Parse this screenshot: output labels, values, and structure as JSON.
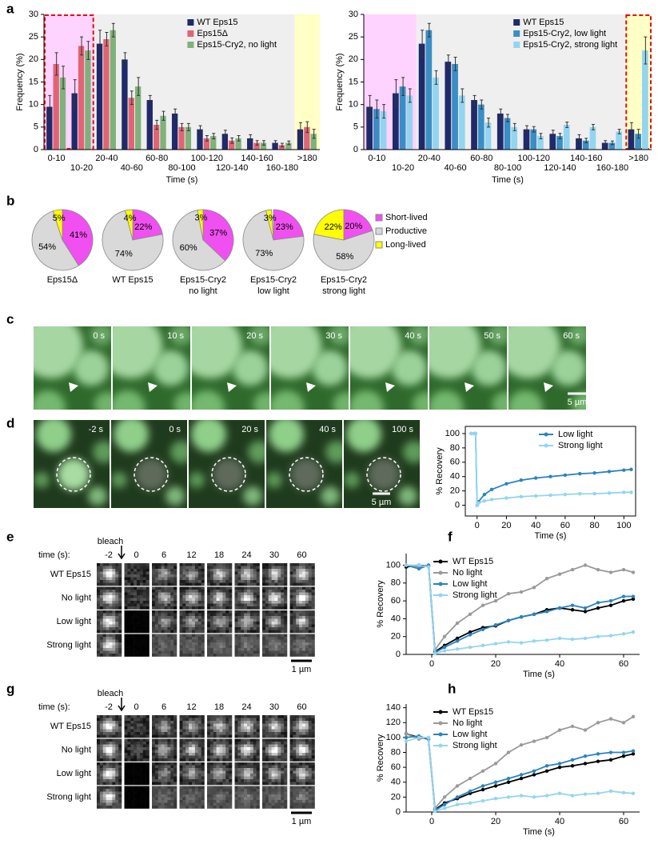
{
  "panel_labels": [
    "a",
    "b",
    "c",
    "d",
    "e",
    "f",
    "g",
    "h"
  ],
  "chart_data": [
    {
      "type": "bar",
      "xlabel": "Time (s)",
      "ylabel": "Frequency (%)",
      "outlined": "left",
      "legend": "upper right",
      "categories": [
        "0-10",
        "10-20",
        "20-40",
        "40-60",
        "60-80",
        "80-100",
        "100-120",
        "120-140",
        "140-160",
        "160-180",
        ">180"
      ],
      "ylim": [
        0,
        30
      ],
      "yticks": [
        0,
        5,
        10,
        15,
        20,
        25,
        30
      ],
      "series": [
        {
          "name": "WT Eps15",
          "color": "#1f2a6b",
          "values": [
            9.5,
            12.5,
            23.5,
            20,
            11,
            8,
            4.5,
            3.5,
            2.5,
            1.5,
            4.5
          ],
          "errors": [
            2.5,
            3,
            3,
            1.5,
            1,
            1,
            0.8,
            0.8,
            0.8,
            0.5,
            1.5
          ]
        },
        {
          "name": "Eps15Δ",
          "color": "#e06574",
          "values": [
            19,
            23,
            24.5,
            11.5,
            5.5,
            5,
            2.5,
            2,
            1.5,
            1,
            5
          ],
          "errors": [
            2.5,
            2,
            1.5,
            1.5,
            1,
            0.8,
            0.6,
            0.6,
            0.5,
            0.4,
            1.2
          ]
        },
        {
          "name": "Eps15-Cry2, no light",
          "color": "#7fb27a",
          "values": [
            16,
            22,
            26.5,
            14,
            7.5,
            5,
            3,
            2.5,
            1.5,
            1.5,
            3.5
          ],
          "errors": [
            2.5,
            2,
            1.5,
            2,
            1,
            0.8,
            0.6,
            0.6,
            0.5,
            0.4,
            1
          ]
        }
      ]
    },
    {
      "type": "bar",
      "xlabel": "Time (s)",
      "ylabel": "Frequency (%)",
      "outlined": "right",
      "legend": "upper right",
      "categories": [
        "0-10",
        "10-20",
        "20-40",
        "40-60",
        "60-80",
        "80-100",
        "100-120",
        "120-140",
        "140-160",
        "160-180",
        ">180"
      ],
      "ylim": [
        0,
        30
      ],
      "yticks": [
        0,
        5,
        10,
        15,
        20,
        25,
        30
      ],
      "series": [
        {
          "name": "WT Eps15",
          "color": "#1f2a6b",
          "values": [
            9.5,
            12.5,
            23.5,
            19.5,
            11,
            8,
            4.5,
            3.5,
            2.5,
            1.5,
            4.5
          ],
          "errors": [
            2.5,
            3,
            3,
            1.5,
            1,
            1,
            0.8,
            0.8,
            0.8,
            0.5,
            1.5
          ]
        },
        {
          "name": "Eps15-Cry2, low light",
          "color": "#3a8ec4",
          "values": [
            9,
            14,
            26.5,
            19,
            10,
            7,
            4.5,
            3,
            2,
            1.5,
            3.5
          ],
          "errors": [
            2,
            2,
            1.5,
            1.5,
            1,
            0.8,
            0.6,
            0.6,
            0.5,
            0.4,
            1
          ]
        },
        {
          "name": "Eps15-Cry2, strong light",
          "color": "#93d5f0",
          "values": [
            8.5,
            12,
            16,
            12,
            6,
            5,
            3,
            5.5,
            5,
            4,
            22
          ],
          "errors": [
            1.5,
            1.5,
            1.5,
            1.5,
            1,
            0.8,
            0.6,
            0.6,
            0.6,
            0.5,
            3
          ]
        }
      ]
    },
    {
      "type": "pie",
      "categories": [
        "Short-lived",
        "Productive",
        "Long-lived"
      ],
      "colors": [
        "#f050f0",
        "#d9d9d9",
        "#ffff00"
      ],
      "pies": [
        {
          "label": [
            "Eps15Δ"
          ],
          "values": [
            41,
            54,
            5
          ],
          "value_labels": [
            "41%",
            "54%",
            "5%"
          ]
        },
        {
          "label": [
            "WT Eps15"
          ],
          "values": [
            22,
            74,
            4
          ],
          "value_labels": [
            "22%",
            "74%",
            "4%"
          ]
        },
        {
          "label": [
            "Eps15-Cry2",
            "no light"
          ],
          "values": [
            37,
            60,
            3
          ],
          "value_labels": [
            "37%",
            "60%",
            "3%"
          ]
        },
        {
          "label": [
            "Eps15-Cry2",
            "low light"
          ],
          "values": [
            23,
            73,
            3
          ],
          "value_labels": [
            "23%",
            "73%",
            "3%"
          ]
        },
        {
          "label": [
            "Eps15-Cry2",
            "strong light"
          ],
          "values": [
            20,
            58,
            22
          ],
          "value_labels": [
            "20%",
            "58%",
            "22%"
          ]
        }
      ]
    },
    {
      "type": "line",
      "xlabel": "Time (s)",
      "ylabel": "% Recovery",
      "frame": true,
      "legend": "upper right",
      "x": [
        -4,
        -2,
        -1,
        0,
        1,
        5,
        10,
        20,
        30,
        40,
        50,
        60,
        70,
        80,
        90,
        100,
        105
      ],
      "xlim": [
        -8,
        108
      ],
      "xticks": [
        0,
        20,
        40,
        60,
        80,
        100
      ],
      "ylim": [
        -15,
        110
      ],
      "yticks": [
        0,
        20,
        40,
        60,
        80,
        100
      ],
      "series": [
        {
          "name": "Low light",
          "color": "#2a84bd",
          "values": [
            100,
            100,
            100,
            0,
            5,
            15,
            22,
            30,
            35,
            38,
            40,
            42,
            44,
            45,
            47,
            49,
            50
          ]
        },
        {
          "name": "Strong light",
          "color": "#93d5f0",
          "values": [
            100,
            100,
            100,
            0,
            3,
            6,
            8,
            10,
            12,
            13,
            14,
            15,
            16,
            16,
            17,
            18,
            18
          ]
        }
      ]
    },
    {
      "type": "line",
      "xlabel": "Time (s)",
      "ylabel": "% Recovery",
      "legend": "upper left",
      "x": [
        -8,
        -4,
        -1,
        1,
        4,
        8,
        12,
        16,
        20,
        24,
        28,
        32,
        36,
        40,
        44,
        48,
        52,
        56,
        60,
        63
      ],
      "xlim": [
        -8,
        65
      ],
      "xticks": [
        0,
        20,
        40,
        60
      ],
      "ylim": [
        0,
        113
      ],
      "yticks": [
        0,
        20,
        40,
        60,
        80,
        100
      ],
      "series": [
        {
          "name": "WT Eps15",
          "color": "#000000",
          "values": [
            98,
            100,
            99,
            3,
            10,
            18,
            25,
            30,
            32,
            38,
            42,
            45,
            50,
            52,
            50,
            48,
            52,
            55,
            60,
            62
          ]
        },
        {
          "name": "No light",
          "color": "#9a9a9a",
          "values": [
            100,
            98,
            100,
            5,
            20,
            35,
            45,
            55,
            60,
            68,
            70,
            75,
            85,
            90,
            95,
            100,
            95,
            92,
            95,
            92
          ]
        },
        {
          "name": "Low light",
          "color": "#2a84bd",
          "values": [
            100,
            96,
            100,
            2,
            8,
            15,
            22,
            28,
            33,
            38,
            42,
            45,
            48,
            52,
            55,
            52,
            58,
            60,
            65,
            65
          ]
        },
        {
          "name": "Strong light",
          "color": "#93d5f0",
          "values": [
            100,
            100,
            98,
            1,
            4,
            6,
            8,
            10,
            12,
            14,
            13,
            15,
            16,
            18,
            17,
            18,
            20,
            21,
            23,
            25
          ]
        }
      ]
    },
    {
      "type": "line",
      "xlabel": "Time (s)",
      "ylabel": "% Recovery",
      "legend": "upper left",
      "x": [
        -8,
        -4,
        -1,
        1,
        4,
        8,
        12,
        16,
        20,
        24,
        28,
        32,
        36,
        40,
        44,
        48,
        52,
        56,
        60,
        63
      ],
      "xlim": [
        -8,
        65
      ],
      "xticks": [
        0,
        20,
        40,
        60
      ],
      "ylim": [
        0,
        145
      ],
      "yticks": [
        0,
        20,
        40,
        60,
        80,
        100,
        120,
        140
      ],
      "series": [
        {
          "name": "WT Eps15",
          "color": "#000000",
          "values": [
            105,
            100,
            98,
            3,
            12,
            18,
            25,
            30,
            35,
            40,
            45,
            50,
            55,
            60,
            62,
            65,
            68,
            70,
            75,
            78
          ]
        },
        {
          "name": "No light",
          "color": "#9a9a9a",
          "values": [
            105,
            98,
            100,
            5,
            20,
            35,
            45,
            55,
            65,
            80,
            90,
            95,
            100,
            110,
            115,
            110,
            120,
            125,
            120,
            128
          ]
        },
        {
          "name": "Low light",
          "color": "#2a84bd",
          "values": [
            100,
            102,
            98,
            2,
            10,
            20,
            28,
            35,
            40,
            45,
            50,
            55,
            62,
            65,
            70,
            75,
            78,
            80,
            80,
            82
          ]
        },
        {
          "name": "Strong light",
          "color": "#93d5f0",
          "values": [
            95,
            100,
            100,
            1,
            5,
            10,
            12,
            15,
            18,
            20,
            22,
            20,
            22,
            25,
            22,
            24,
            25,
            28,
            26,
            25
          ]
        }
      ]
    }
  ],
  "panel_c": {
    "times": [
      "0 s",
      "10 s",
      "20 s",
      "30 s",
      "40 s",
      "50 s",
      "60 s"
    ],
    "scale": "5 µm"
  },
  "panel_d": {
    "times": [
      "-2 s",
      "0 s",
      "20 s",
      "40 s",
      "100 s"
    ],
    "scale": "5 µm"
  },
  "panel_e": {
    "header": "time (s):",
    "bleach": "bleach",
    "times": [
      "-2",
      "0",
      "6",
      "12",
      "18",
      "24",
      "30",
      "60"
    ],
    "rows": [
      "WT Eps15",
      "No light",
      "Low light",
      "Strong light"
    ],
    "scale": "1 µm"
  },
  "panel_g": {
    "header": "time (s):",
    "bleach": "bleach",
    "times": [
      "-2",
      "0",
      "6",
      "12",
      "18",
      "24",
      "30",
      "60"
    ],
    "rows": [
      "WT Eps15",
      "No light",
      "Low light",
      "Strong light"
    ],
    "scale": "1 µm"
  }
}
